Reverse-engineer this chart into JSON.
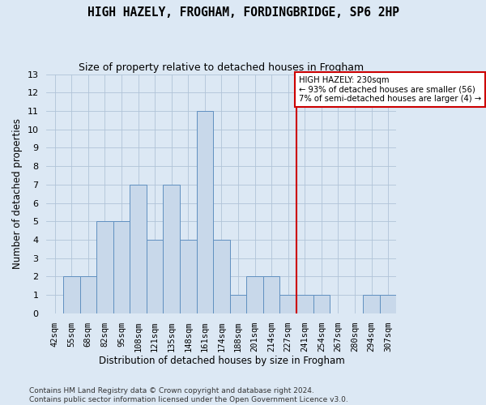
{
  "title": "HIGH HAZELY, FROGHAM, FORDINGBRIDGE, SP6 2HP",
  "subtitle": "Size of property relative to detached houses in Frogham",
  "xlabel": "Distribution of detached houses by size in Frogham",
  "ylabel": "Number of detached properties",
  "bar_labels": [
    "42sqm",
    "55sqm",
    "68sqm",
    "82sqm",
    "95sqm",
    "108sqm",
    "121sqm",
    "135sqm",
    "148sqm",
    "161sqm",
    "174sqm",
    "188sqm",
    "201sqm",
    "214sqm",
    "227sqm",
    "241sqm",
    "254sqm",
    "267sqm",
    "280sqm",
    "294sqm",
    "307sqm"
  ],
  "bar_values": [
    0,
    2,
    2,
    5,
    5,
    7,
    4,
    7,
    4,
    11,
    4,
    1,
    2,
    2,
    1,
    1,
    1,
    0,
    0,
    1,
    1
  ],
  "bar_color": "#c8d8ea",
  "bar_edge_color": "#6090c0",
  "grid_color": "#b0c4d8",
  "vline_color": "#cc0000",
  "vline_pos": 14.5,
  "annotation_text": "HIGH HAZELY: 230sqm\n← 93% of detached houses are smaller (56)\n7% of semi-detached houses are larger (4) →",
  "ylim": [
    0,
    13
  ],
  "yticks": [
    0,
    1,
    2,
    3,
    4,
    5,
    6,
    7,
    8,
    9,
    10,
    11,
    12,
    13
  ],
  "footer_line1": "Contains HM Land Registry data © Crown copyright and database right 2024.",
  "footer_line2": "Contains public sector information licensed under the Open Government Licence v3.0.",
  "figsize": [
    6.0,
    5.0
  ],
  "dpi": 100,
  "bg_color": "#dce8f4"
}
